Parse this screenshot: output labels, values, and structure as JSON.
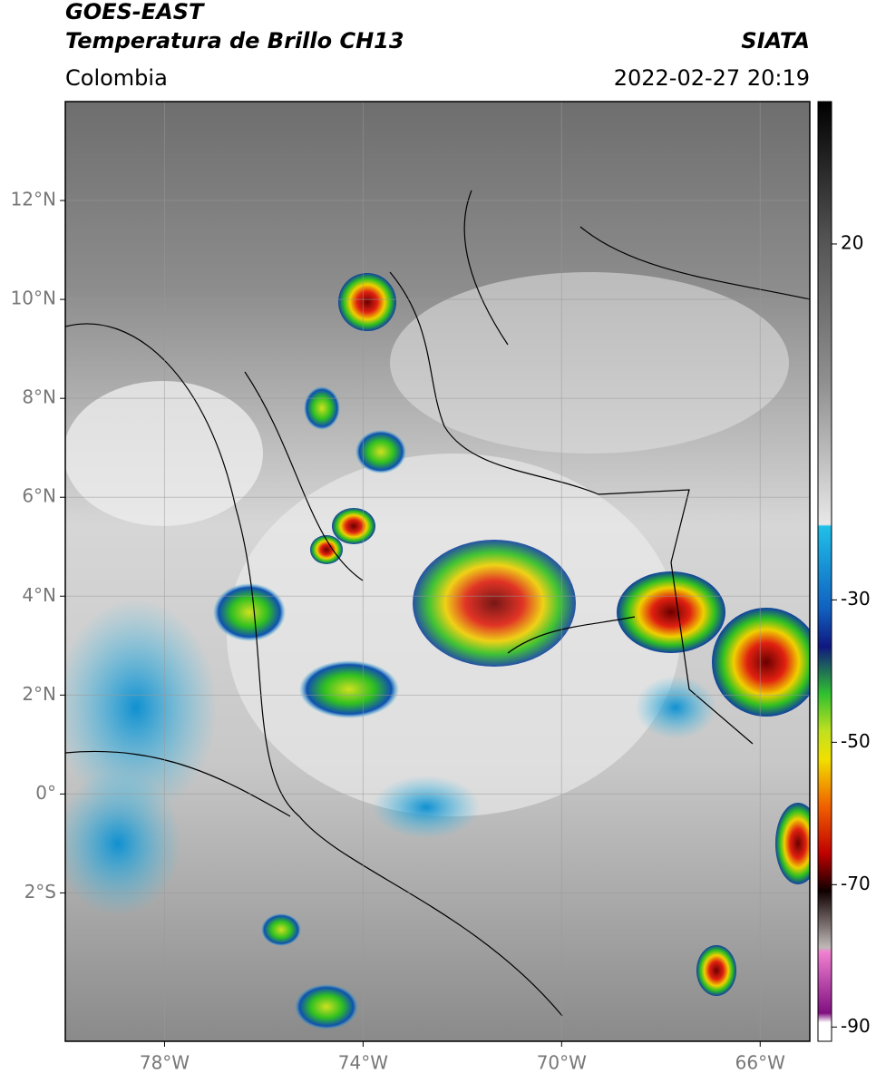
{
  "header": {
    "title_line1": "GOES-EAST",
    "title_line2": "Temperatura de Brillo CH13",
    "region": "Colombia",
    "source": "SIATA",
    "timestamp": "2022-02-27 20:19"
  },
  "map": {
    "xlim": [
      -80,
      -65
    ],
    "ylim": [
      -5,
      14
    ],
    "xticks": [
      {
        "value": -78,
        "label": "78°W"
      },
      {
        "value": -74,
        "label": "74°W"
      },
      {
        "value": -70,
        "label": "70°W"
      },
      {
        "value": -66,
        "label": "66°W"
      }
    ],
    "yticks": [
      {
        "value": 12,
        "label": "12°N"
      },
      {
        "value": 10,
        "label": "10°N"
      },
      {
        "value": 8,
        "label": "8°N"
      },
      {
        "value": 6,
        "label": "6°N"
      },
      {
        "value": 4,
        "label": "4°N"
      },
      {
        "value": 2,
        "label": "2°N"
      },
      {
        "value": 0,
        "label": "0°"
      },
      {
        "value": -2,
        "label": "2°S"
      }
    ],
    "grid": true
  },
  "colorbar": {
    "lim": [
      -92,
      40
    ],
    "ticks": [
      20,
      -30,
      -50,
      -70,
      -90
    ]
  }
}
